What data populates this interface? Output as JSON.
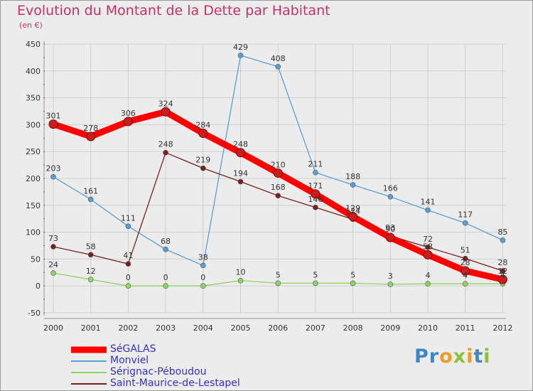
{
  "header": {
    "title": "Evolution du Montant de la Dette par Habitant",
    "subtitle": "(en €)"
  },
  "colors": {
    "title": "#c8306a",
    "axis_text": "#333333",
    "legend_text": "#3333cc",
    "tick_mark": "#cc0033"
  },
  "logo": {
    "text": "Proxiti"
  },
  "chart_data": {
    "type": "line",
    "title": "Evolution du Montant de la Dette par Habitant",
    "subtitle": "(en €)",
    "x": [
      "2000",
      "2001",
      "2002",
      "2003",
      "2004",
      "2005",
      "2006",
      "2007",
      "2008",
      "2009",
      "2010",
      "2011",
      "2012"
    ],
    "ylim": [
      -50,
      450
    ],
    "yticks": [
      -50,
      0,
      50,
      100,
      150,
      200,
      250,
      300,
      350,
      400,
      450
    ],
    "grid": true,
    "legend_position": "bottom-left",
    "series": [
      {
        "name": "SéGALAS",
        "color": "#ff0000",
        "width": "thick",
        "values": [
          301,
          278,
          306,
          324,
          284,
          248,
          210,
          171,
          129,
          90,
          58,
          28,
          12
        ],
        "labels": [
          "301",
          "278",
          "306",
          "324",
          "284",
          "248",
          "210",
          "171",
          "129",
          "90",
          "58",
          "28",
          "12"
        ]
      },
      {
        "name": "Monviel",
        "color": "#5a9fd4",
        "width": "thin",
        "values": [
          203,
          161,
          111,
          68,
          38,
          429,
          408,
          211,
          188,
          166,
          141,
          117,
          85
        ],
        "labels": [
          "203",
          "161",
          "111",
          "68",
          "38",
          "429",
          "408",
          "211",
          "188",
          "166",
          "141",
          "117",
          "85"
        ]
      },
      {
        "name": "Sérignac-Péboudou",
        "color": "#8ed460",
        "width": "thin",
        "values": [
          24,
          12,
          0,
          0,
          0,
          10,
          5,
          5,
          5,
          3,
          4,
          4,
          4
        ],
        "labels": [
          "24",
          "12",
          "0",
          "0",
          "0",
          "10",
          "5",
          "5",
          "5",
          "3",
          "4",
          "4",
          "4"
        ]
      },
      {
        "name": "Saint-Maurice-de-Lestapel",
        "color": "#7a1f1f",
        "width": "thin",
        "values": [
          73,
          58,
          41,
          248,
          219,
          194,
          168,
          146,
          124,
          93,
          72,
          51,
          28
        ],
        "labels": [
          "73",
          "58",
          "41",
          "248",
          "219",
          "194",
          "168",
          "146",
          "124",
          "93",
          "72",
          "51",
          "28"
        ]
      }
    ]
  }
}
